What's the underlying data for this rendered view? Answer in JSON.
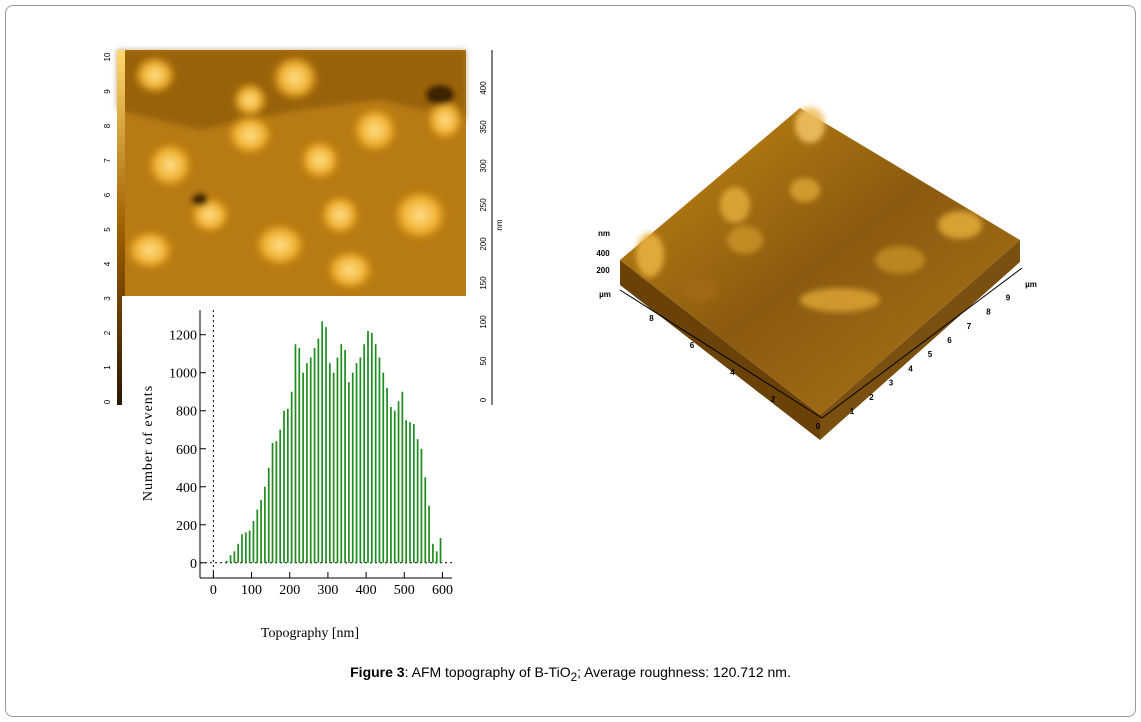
{
  "afm_image": {
    "axis_ticks": [
      "0",
      "1",
      "2",
      "3",
      "4",
      "5",
      "6",
      "7",
      "8",
      "9",
      "10"
    ],
    "colorbar_ticks": [
      "0",
      "50",
      "100",
      "150",
      "200",
      "250",
      "300",
      "350",
      "400"
    ],
    "colorbar_unit": "nm"
  },
  "chart_data": {
    "type": "histogram",
    "xlabel": "Topography [nm]",
    "ylabel": "Number of events",
    "color": "#1e8c1e",
    "bins": [
      30,
      40,
      50,
      60,
      70,
      80,
      90,
      100,
      110,
      120,
      130,
      140,
      150,
      160,
      170,
      180,
      190,
      200,
      210,
      220,
      230,
      240,
      250,
      260,
      270,
      280,
      290,
      300,
      310,
      320,
      330,
      340,
      350,
      360,
      370,
      380,
      390,
      400,
      410,
      420,
      430,
      440,
      450,
      460,
      470,
      480,
      490,
      500,
      510,
      520,
      530,
      540,
      550,
      560,
      570,
      580,
      590,
      600
    ],
    "counts": [
      10,
      40,
      60,
      100,
      150,
      160,
      170,
      220,
      280,
      330,
      400,
      500,
      630,
      640,
      700,
      800,
      810,
      900,
      1150,
      1130,
      1000,
      1050,
      1080,
      1130,
      1180,
      1270,
      1240,
      1050,
      1000,
      1080,
      1150,
      1120,
      950,
      1000,
      1050,
      1080,
      1150,
      1220,
      1210,
      1150,
      1080,
      1000,
      920,
      820,
      800,
      850,
      900,
      750,
      740,
      730,
      650,
      600,
      450,
      300,
      100,
      60,
      130
    ],
    "xlim": [
      -35,
      625
    ],
    "ylim": [
      -80,
      1330
    ],
    "xticks": [
      0,
      100,
      200,
      300,
      400,
      500,
      600
    ],
    "yticks": [
      0,
      200,
      400,
      600,
      800,
      1000,
      1200
    ]
  },
  "surface_3d": {
    "z_unit": "nm",
    "z_ticks": [
      "400",
      "200"
    ],
    "z_base_unit": "µm",
    "left_axis_ticks": [
      "2",
      "4",
      "6",
      "8"
    ],
    "right_axis_ticks": [
      "0",
      "1",
      "2",
      "3",
      "4",
      "5",
      "6",
      "7",
      "8",
      "9"
    ],
    "right_axis_unit": "µm"
  },
  "caption": {
    "label": "Figure 3",
    "text_before": ": AFM topography of B-TiO",
    "subscript": "2",
    "text_after": "; Average roughness: 120.712 nm."
  }
}
